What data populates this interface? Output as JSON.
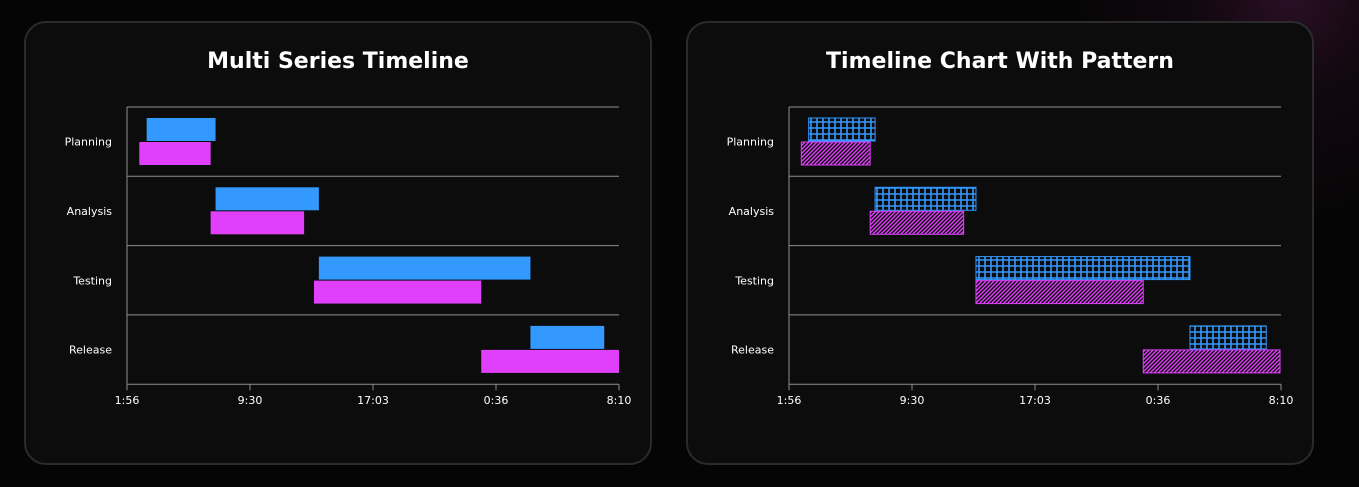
{
  "charts": [
    {
      "title": "Multi Series Timeline",
      "patterned": false
    },
    {
      "title": "Timeline Chart With Pattern",
      "patterned": true
    }
  ],
  "colors": {
    "series_blue": "#3399ff",
    "series_magenta": "#e040fb",
    "axis": "#8a8f94",
    "card_bg": "#0c0c0c"
  },
  "chart_data": [
    {
      "type": "bar",
      "orientation": "horizontal-timeline",
      "title": "Multi Series Timeline",
      "categories": [
        "Planning",
        "Analysis",
        "Testing",
        "Release"
      ],
      "x_ticks": [
        "1:56",
        "9:30",
        "17:03",
        "0:36",
        "8:10"
      ],
      "xlim": [
        0,
        1
      ],
      "series": [
        {
          "color": "#3399ff",
          "ranges": [
            [
              0.04,
              0.18
            ],
            [
              0.18,
              0.39
            ],
            [
              0.39,
              0.82
            ],
            [
              0.82,
              0.97
            ]
          ]
        },
        {
          "color": "#e040fb",
          "ranges": [
            [
              0.025,
              0.17
            ],
            [
              0.17,
              0.36
            ],
            [
              0.38,
              0.72
            ],
            [
              0.72,
              1.0
            ]
          ]
        }
      ],
      "grid": true
    },
    {
      "type": "bar",
      "orientation": "horizontal-timeline",
      "title": "Timeline Chart With Pattern",
      "categories": [
        "Planning",
        "Analysis",
        "Testing",
        "Release"
      ],
      "x_ticks": [
        "1:56",
        "9:30",
        "17:03",
        "0:36",
        "8:10"
      ],
      "xlim": [
        0,
        1
      ],
      "series": [
        {
          "color": "#3399ff",
          "pattern": "grid",
          "ranges": [
            [
              0.04,
              0.175
            ],
            [
              0.175,
              0.38
            ],
            [
              0.38,
              0.815
            ],
            [
              0.815,
              0.97
            ]
          ]
        },
        {
          "color": "#e040fb",
          "pattern": "diagonal",
          "ranges": [
            [
              0.025,
              0.165
            ],
            [
              0.165,
              0.355
            ],
            [
              0.38,
              0.72
            ],
            [
              0.72,
              0.998
            ]
          ]
        }
      ],
      "grid": true
    }
  ]
}
